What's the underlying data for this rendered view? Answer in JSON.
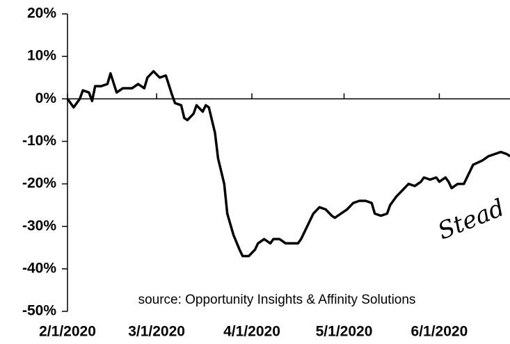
{
  "chart_data": {
    "type": "line",
    "annotations": [
      "source: Opportunity Insights & Affinity Solutions",
      "Stead"
    ],
    "x": [
      "2/1/2020",
      "2/3/2020",
      "2/5/2020",
      "2/6/2020",
      "2/8/2020",
      "2/9/2020",
      "2/10/2020",
      "2/12/2020",
      "2/14/2020",
      "2/15/2020",
      "2/17/2020",
      "2/19/2020",
      "2/22/2020",
      "2/24/2020",
      "2/26/2020",
      "2/27/2020",
      "2/29/2020",
      "3/2/2020",
      "3/4/2020",
      "3/6/2020",
      "3/7/2020",
      "3/9/2020",
      "3/10/2020",
      "3/11/2020",
      "3/13/2020",
      "3/14/2020",
      "3/16/2020",
      "3/17/2020",
      "3/18/2020",
      "3/20/2020",
      "3/21/2020",
      "3/23/2020",
      "3/24/2020",
      "3/26/2020",
      "3/28/2020",
      "3/29/2020",
      "3/31/2020",
      "4/2/2020",
      "4/3/2020",
      "4/5/2020",
      "4/7/2020",
      "4/8/2020",
      "4/10/2020",
      "4/12/2020",
      "4/14/2020",
      "4/16/2020",
      "4/17/2020",
      "4/19/2020",
      "4/21/2020",
      "4/23/2020",
      "4/25/2020",
      "4/27/2020",
      "4/28/2020",
      "4/30/2020",
      "5/2/2020",
      "5/4/2020",
      "5/6/2020",
      "5/8/2020",
      "5/10/2020",
      "5/11/2020",
      "5/13/2020",
      "5/15/2020",
      "5/16/2020",
      "5/18/2020",
      "5/20/2020",
      "5/22/2020",
      "5/24/2020",
      "5/26/2020",
      "5/27/2020",
      "5/29/2020",
      "5/31/2020",
      "6/1/2020",
      "6/3/2020",
      "6/4/2020",
      "6/5/2020",
      "6/7/2020",
      "6/9/2020",
      "6/10/2020",
      "6/12/2020",
      "6/15/2020",
      "6/17/2020",
      "6/19/2020",
      "6/21/2020",
      "6/23/2020",
      "6/24/2020"
    ],
    "series": [
      {
        "color": "#000000",
        "values": [
          0,
          -2,
          0,
          2,
          1.5,
          -0.5,
          3,
          3,
          3.5,
          6,
          1.5,
          2.5,
          2.5,
          3.5,
          2.5,
          5,
          6.5,
          5,
          5.5,
          1,
          -1,
          -1.5,
          -4.5,
          -5,
          -3.5,
          -1.5,
          -3,
          -1.5,
          -2,
          -8,
          -14,
          -20,
          -27,
          -32,
          -35.5,
          -37,
          -37,
          -35.5,
          -34,
          -33,
          -34,
          -33,
          -33,
          -34,
          -34,
          -34,
          -33,
          -30,
          -27,
          -25.5,
          -26,
          -27.5,
          -28,
          -27,
          -26,
          -24.5,
          -24,
          -24,
          -24.5,
          -27,
          -27.5,
          -27,
          -25,
          -23,
          -21.5,
          -20,
          -20.5,
          -19.5,
          -18.5,
          -19,
          -18.5,
          -19.5,
          -18.5,
          -19.5,
          -21,
          -20,
          -20,
          -18.5,
          -15.5,
          -14.5,
          -13.5,
          -13,
          -12.5,
          -13,
          -13.5
        ]
      }
    ],
    "xlim": [
      "2/1/2020",
      "6/24/2020"
    ],
    "xticks": [
      "2/1/2020",
      "3/1/2020",
      "4/1/2020",
      "5/1/2020",
      "6/1/2020"
    ],
    "ylim": [
      -50,
      20
    ],
    "yticks": [
      {
        "value": 20,
        "label": "20%"
      },
      {
        "value": 10,
        "label": "10%"
      },
      {
        "value": 0,
        "label": "0%"
      },
      {
        "value": -10,
        "label": "-10%"
      },
      {
        "value": -20,
        "label": "-20%"
      },
      {
        "value": -30,
        "label": "-30%"
      },
      {
        "value": -40,
        "label": "-40%"
      },
      {
        "value": -50,
        "label": "-50%"
      }
    ]
  }
}
